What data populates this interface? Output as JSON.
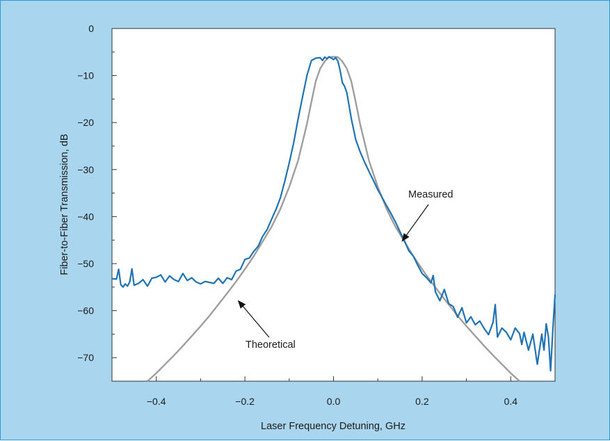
{
  "chart_data": {
    "type": "line",
    "title": "",
    "xlabel": "Laser Frequency Detuning, GHz",
    "ylabel": "Fiber-to-Fiber Transmission, dB",
    "xlim": [
      -0.5,
      0.5
    ],
    "ylim": [
      -75,
      0
    ],
    "grid": false,
    "legend": "none",
    "x_ticks": [
      -0.4,
      -0.2,
      0.0,
      0.2,
      0.4
    ],
    "x_tick_labels": [
      "−0.4",
      "−0.2",
      "0.0",
      "0.2",
      "0.4"
    ],
    "y_ticks": [
      0,
      -10,
      -20,
      -30,
      -40,
      -50,
      -60,
      -70
    ],
    "y_tick_labels": [
      "0",
      "−10",
      "−20",
      "−30",
      "−40",
      "−50",
      "−60",
      "−70"
    ],
    "series": [
      {
        "name": "Measured",
        "color": "#1f73b3",
        "x": [
          -0.5,
          -0.49,
          -0.485,
          -0.48,
          -0.475,
          -0.47,
          -0.465,
          -0.46,
          -0.455,
          -0.45,
          -0.44,
          -0.43,
          -0.42,
          -0.41,
          -0.4,
          -0.39,
          -0.38,
          -0.37,
          -0.36,
          -0.35,
          -0.34,
          -0.33,
          -0.32,
          -0.31,
          -0.3,
          -0.29,
          -0.28,
          -0.27,
          -0.26,
          -0.25,
          -0.24,
          -0.23,
          -0.22,
          -0.21,
          -0.2,
          -0.19,
          -0.18,
          -0.17,
          -0.16,
          -0.15,
          -0.14,
          -0.13,
          -0.12,
          -0.11,
          -0.1,
          -0.09,
          -0.08,
          -0.07,
          -0.06,
          -0.05,
          -0.04,
          -0.03,
          -0.025,
          -0.02,
          -0.015,
          -0.01,
          -0.005,
          0.0,
          0.005,
          0.01,
          0.015,
          0.02,
          0.025,
          0.03,
          0.04,
          0.05,
          0.06,
          0.07,
          0.08,
          0.09,
          0.1,
          0.11,
          0.12,
          0.13,
          0.14,
          0.15,
          0.16,
          0.17,
          0.18,
          0.19,
          0.2,
          0.21,
          0.22,
          0.225,
          0.23,
          0.24,
          0.25,
          0.26,
          0.27,
          0.28,
          0.29,
          0.3,
          0.31,
          0.32,
          0.33,
          0.34,
          0.35,
          0.36,
          0.365,
          0.37,
          0.38,
          0.39,
          0.4,
          0.41,
          0.42,
          0.425,
          0.43,
          0.44,
          0.45,
          0.46,
          0.47,
          0.475,
          0.48,
          0.485,
          0.49,
          0.495,
          0.5
        ],
        "y": [
          -53.2,
          -53.3,
          -51.2,
          -54.5,
          -55.0,
          -54.3,
          -54.8,
          -53.9,
          -51.1,
          -54.6,
          -54.2,
          -53.4,
          -54.8,
          -53.1,
          -52.9,
          -52.4,
          -53.9,
          -52.6,
          -53.4,
          -53.8,
          -52.1,
          -53.6,
          -53.0,
          -53.9,
          -54.3,
          -53.8,
          -54.0,
          -54.2,
          -53.1,
          -54.2,
          -53.0,
          -53.4,
          -51.6,
          -51.2,
          -49.1,
          -48.8,
          -47.4,
          -46.3,
          -44.2,
          -42.8,
          -40.6,
          -38.5,
          -36.0,
          -32.5,
          -28.6,
          -24.3,
          -19.3,
          -14.6,
          -10.0,
          -6.8,
          -6.3,
          -6.2,
          -6.8,
          -6.1,
          -6.4,
          -6.0,
          -6.3,
          -6.6,
          -6.2,
          -7.0,
          -9.0,
          -11.5,
          -12.3,
          -13.6,
          -19.1,
          -23.6,
          -26.2,
          -28.4,
          -30.4,
          -32.3,
          -34.3,
          -36.0,
          -37.7,
          -39.4,
          -41.2,
          -43.2,
          -45.1,
          -47.3,
          -48.4,
          -50.3,
          -52.1,
          -53.0,
          -54.1,
          -52.5,
          -56.0,
          -57.9,
          -55.5,
          -58.5,
          -59.1,
          -61.4,
          -59.4,
          -62.6,
          -61.3,
          -63.0,
          -62.2,
          -63.8,
          -65.1,
          -62.5,
          -58.7,
          -65.6,
          -63.7,
          -64.6,
          -66.2,
          -63.7,
          -64.9,
          -67.2,
          -64.6,
          -68.4,
          -65.0,
          -71.4,
          -65.0,
          -68.4,
          -62.8,
          -65.5,
          -72.8,
          -64.1,
          -56.6
        ]
      },
      {
        "name": "Theoretical",
        "color": "#9e9e9e",
        "x": [
          -0.42,
          -0.4,
          -0.38,
          -0.36,
          -0.34,
          -0.32,
          -0.3,
          -0.28,
          -0.26,
          -0.24,
          -0.22,
          -0.2,
          -0.18,
          -0.16,
          -0.14,
          -0.12,
          -0.1,
          -0.08,
          -0.06,
          -0.05,
          -0.04,
          -0.03,
          -0.02,
          -0.01,
          0.0,
          0.01,
          0.02,
          0.03,
          0.04,
          0.05,
          0.06,
          0.08,
          0.1,
          0.12,
          0.14,
          0.16,
          0.18,
          0.2,
          0.22,
          0.24,
          0.26,
          0.28,
          0.3,
          0.32,
          0.34,
          0.36,
          0.38,
          0.4,
          0.42
        ],
        "y": [
          -75.0,
          -73.3,
          -71.4,
          -69.5,
          -67.5,
          -65.4,
          -63.3,
          -61.1,
          -58.7,
          -56.3,
          -53.8,
          -51.2,
          -48.4,
          -45.3,
          -42.2,
          -38.4,
          -33.7,
          -28.1,
          -20.3,
          -15.6,
          -11.2,
          -8.5,
          -7.0,
          -6.1,
          -6.0,
          -6.1,
          -7.0,
          -8.5,
          -11.2,
          -15.6,
          -20.3,
          -28.1,
          -33.7,
          -38.4,
          -42.2,
          -45.3,
          -48.4,
          -51.2,
          -53.8,
          -56.3,
          -58.7,
          -61.1,
          -63.3,
          -65.4,
          -67.5,
          -69.5,
          -71.4,
          -73.3,
          -75.0
        ]
      }
    ],
    "annotations": [
      {
        "text": "Measured",
        "arrow_to": [
          0.155,
          -45.2
        ]
      },
      {
        "text": "Theoretical",
        "arrow_to": [
          -0.215,
          -57.9
        ]
      }
    ]
  }
}
